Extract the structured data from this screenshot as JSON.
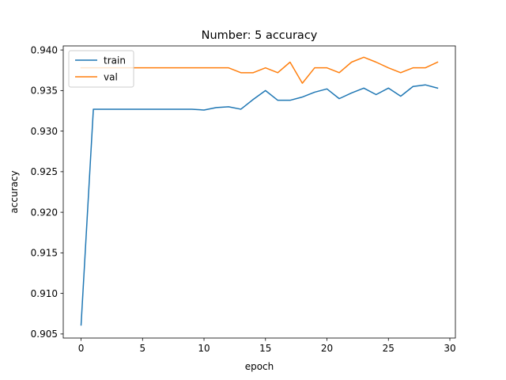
{
  "chart_data": {
    "type": "line",
    "title": "Number: 5 accuracy",
    "xlabel": "epoch",
    "ylabel": "accuracy",
    "xlim": [
      -1.45,
      30.45
    ],
    "ylim": [
      0.9045,
      0.9405
    ],
    "xticks": [
      0,
      5,
      10,
      15,
      20,
      25,
      30
    ],
    "yticks": [
      0.905,
      0.91,
      0.915,
      0.92,
      0.925,
      0.93,
      0.935,
      0.94
    ],
    "ytick_labels": [
      "0.905",
      "0.910",
      "0.915",
      "0.920",
      "0.925",
      "0.930",
      "0.935",
      "0.940"
    ],
    "grid": false,
    "legend_position": "upper-left",
    "x": [
      0,
      1,
      2,
      3,
      4,
      5,
      6,
      7,
      8,
      9,
      10,
      11,
      12,
      13,
      14,
      15,
      16,
      17,
      18,
      19,
      20,
      21,
      22,
      23,
      24,
      25,
      26,
      27,
      28,
      29
    ],
    "series": [
      {
        "name": "train",
        "color": "#1f77b4",
        "values": [
          0.9061,
          0.9327,
          0.9327,
          0.9327,
          0.9327,
          0.9327,
          0.9327,
          0.9327,
          0.9327,
          0.9327,
          0.9326,
          0.9329,
          0.933,
          0.9327,
          0.9339,
          0.935,
          0.9338,
          0.9338,
          0.9342,
          0.9348,
          0.9352,
          0.934,
          0.9347,
          0.9353,
          0.9345,
          0.9353,
          0.9343,
          0.9355,
          0.9357,
          0.9353
        ]
      },
      {
        "name": "val",
        "color": "#ff7f0e",
        "values": [
          0.9378,
          0.9378,
          0.9378,
          0.9378,
          0.9378,
          0.9378,
          0.9378,
          0.9378,
          0.9378,
          0.9378,
          0.9378,
          0.9378,
          0.9378,
          0.9372,
          0.9372,
          0.9378,
          0.9372,
          0.9385,
          0.9359,
          0.9378,
          0.9378,
          0.9372,
          0.9385,
          0.9391,
          0.9385,
          0.9378,
          0.9372,
          0.9378,
          0.9378,
          0.9385
        ]
      }
    ]
  }
}
